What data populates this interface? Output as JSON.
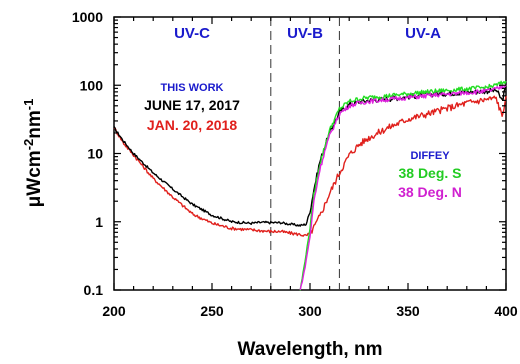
{
  "chart_data": {
    "type": "line",
    "title": "",
    "xlabel": "Wavelength, nm",
    "ylabel": "μWcm-2nm-1",
    "y_scale": "log",
    "xlim": [
      200,
      400
    ],
    "ylim": [
      0.1,
      1000
    ],
    "x_ticks": [
      "200",
      "250",
      "300",
      "350",
      "400"
    ],
    "y_ticks": [
      "0.1",
      "1",
      "10",
      "100",
      "1000"
    ],
    "region_dividers": [
      280,
      315
    ],
    "regions": [
      {
        "label": "UV-C",
        "x": 240
      },
      {
        "label": "UV-B",
        "x": 297.5
      },
      {
        "label": "UV-A",
        "x": 357.5
      }
    ],
    "annotations": {
      "this_work": "THIS WORK",
      "june": "JUNE 17, 2017",
      "jan": "JAN.  20, 2018",
      "diffey": "DIFFEY",
      "deg_s": "38 Deg. S",
      "deg_n": "38 Deg. N"
    },
    "series": [
      {
        "name": "JUNE 17, 2017",
        "color": "#000000",
        "x": [
          200,
          205,
          210,
          220,
          230,
          240,
          250,
          260,
          270,
          275,
          280,
          285,
          290,
          295,
          298,
          300,
          302,
          305,
          308,
          310,
          315,
          320,
          325,
          330,
          340,
          350,
          360,
          370,
          380,
          390,
          395,
          398,
          400
        ],
        "y": [
          24,
          15,
          10,
          5.2,
          3.0,
          1.8,
          1.25,
          1.0,
          0.95,
          0.98,
          0.97,
          0.97,
          0.92,
          0.88,
          0.92,
          1.4,
          3.0,
          7.5,
          14,
          20,
          40,
          52,
          57,
          60,
          63,
          68,
          73,
          76,
          79,
          82,
          85,
          60,
          95
        ]
      },
      {
        "name": "JAN.  20, 2018",
        "color": "#e0201c",
        "x": [
          200,
          205,
          210,
          220,
          230,
          240,
          250,
          260,
          270,
          280,
          285,
          290,
          295,
          298,
          300,
          302,
          305,
          308,
          310,
          315,
          320,
          325,
          330,
          340,
          350,
          360,
          370,
          380,
          390,
          395,
          398,
          400
        ],
        "y": [
          24,
          14,
          9.5,
          4.3,
          2.3,
          1.3,
          0.95,
          0.8,
          0.76,
          0.72,
          0.72,
          0.68,
          0.65,
          0.62,
          0.68,
          0.82,
          1.2,
          1.9,
          2.6,
          5.2,
          9.5,
          13.5,
          17,
          24,
          32,
          38,
          46,
          55,
          62,
          65,
          35,
          70
        ]
      },
      {
        "name": "38 Deg. S",
        "color": "#22dd22",
        "x": [
          295,
          297,
          300,
          302,
          305,
          308,
          310,
          315,
          320,
          325,
          330,
          340,
          350,
          360,
          370,
          380,
          390,
          395,
          400
        ],
        "y": [
          0.1,
          0.22,
          0.8,
          2.5,
          7,
          14,
          22,
          45,
          58,
          63,
          66,
          70,
          75,
          80,
          84,
          88,
          93,
          100,
          115
        ]
      },
      {
        "name": "38 Deg. N",
        "color": "#e020e0",
        "x": [
          295,
          297,
          300,
          302,
          305,
          308,
          310,
          315,
          320,
          325,
          330,
          340,
          350,
          360,
          370,
          380,
          390,
          395,
          400
        ],
        "y": [
          0.1,
          0.18,
          0.6,
          2.0,
          5.8,
          12,
          18,
          38,
          50,
          55,
          58,
          62,
          66,
          70,
          74,
          78,
          82,
          88,
          100
        ]
      }
    ]
  }
}
